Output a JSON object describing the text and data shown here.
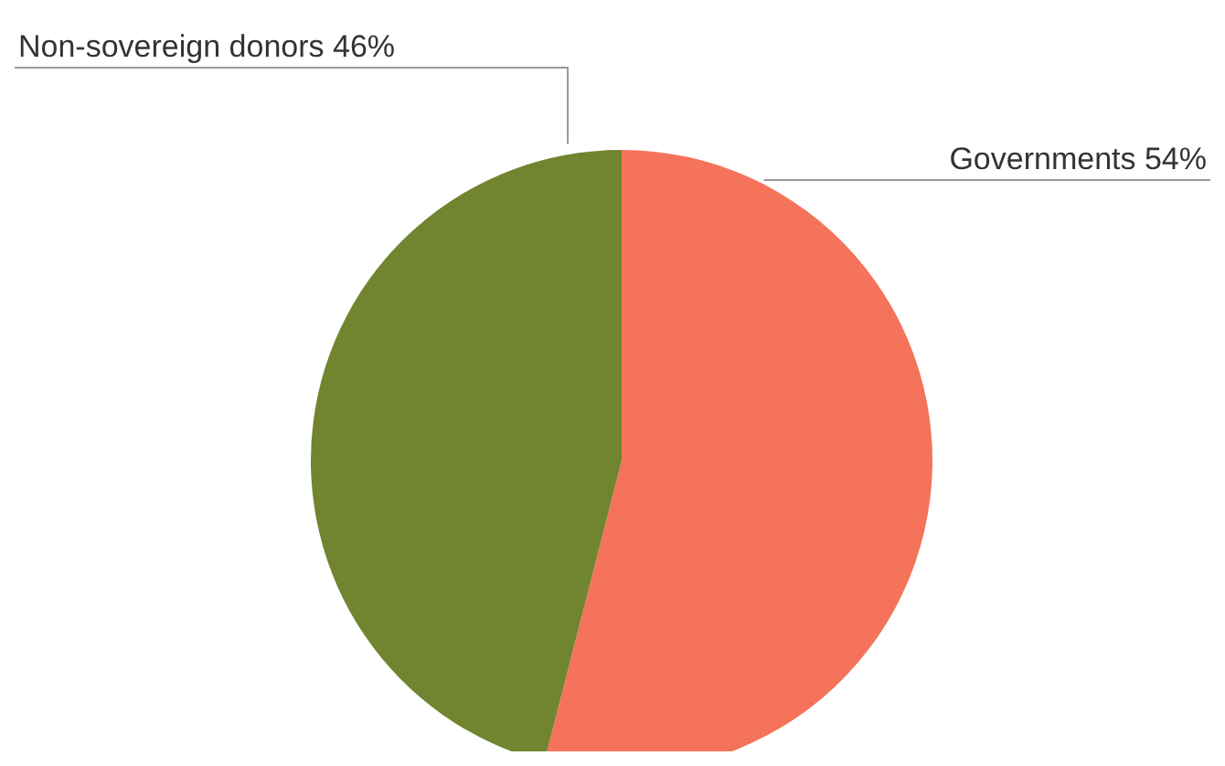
{
  "chart_data": {
    "type": "pie",
    "categories": [
      "Governments",
      "Non-sovereign donors"
    ],
    "values": [
      54,
      46
    ],
    "colors": [
      "#f4735a",
      "#71842f"
    ],
    "value_labels": [
      "54%",
      "46%"
    ],
    "legend": false
  }
}
